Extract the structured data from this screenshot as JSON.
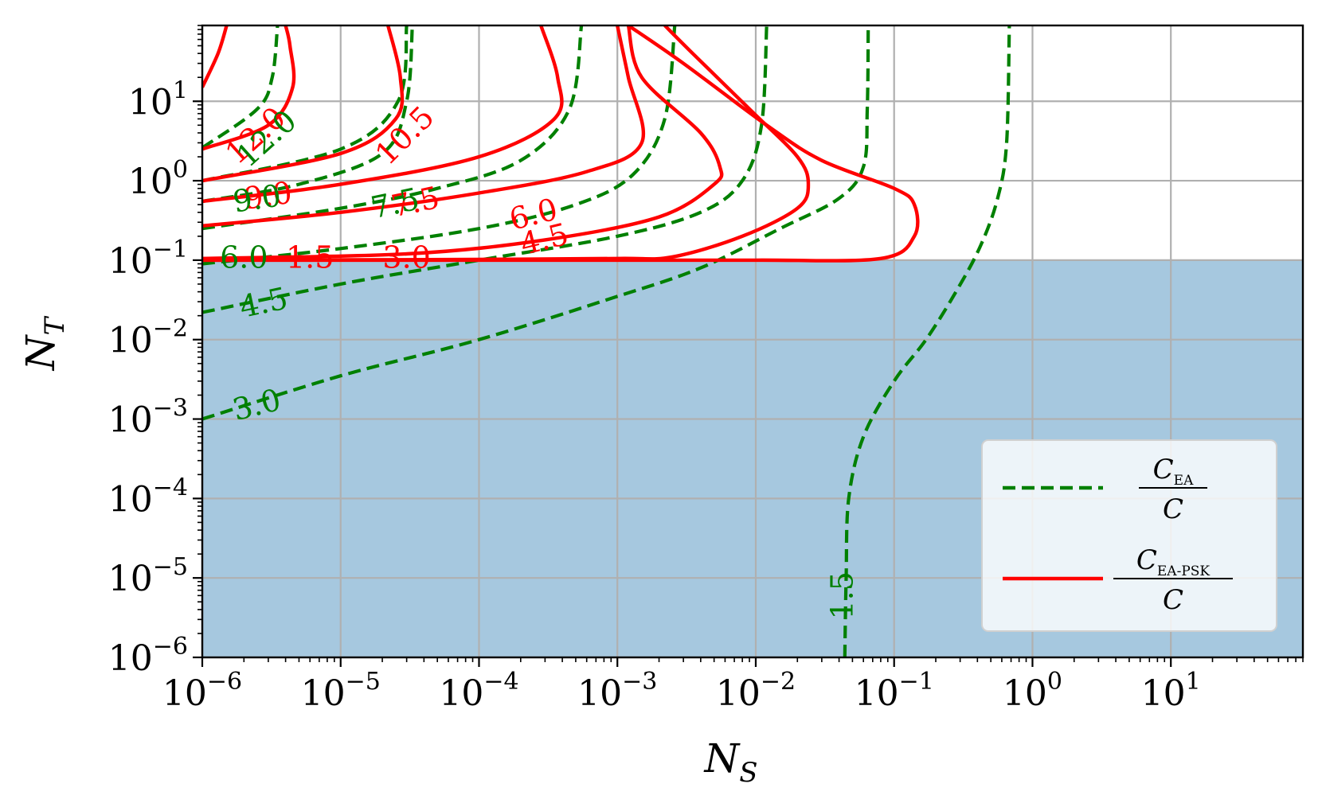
{
  "chart_data": {
    "type": "line",
    "xlabel": "N",
    "xlabel_sub": "S",
    "ylabel": "N",
    "ylabel_sub": "T",
    "xscale": "log",
    "yscale": "log",
    "xlim": [
      1e-06,
      90
    ],
    "ylim": [
      1e-06,
      90
    ],
    "grid": true,
    "x_tick_exponents": [
      "−6",
      "−5",
      "−4",
      "−3",
      "−2",
      "−1",
      "0",
      "1"
    ],
    "y_tick_exponents": [
      "−6",
      "−5",
      "−4",
      "−3",
      "−2",
      "−1",
      "0",
      "1"
    ],
    "tick_base": "10",
    "shaded_region": {
      "y_max": 0.1,
      "color": "#a6c8df"
    },
    "legend": {
      "position": "lower-right",
      "entries": [
        {
          "symbol": "C",
          "subscript": "EA",
          "denominator": "C",
          "style": "dashed",
          "color": "#008000"
        },
        {
          "symbol": "C",
          "subscript": "EA-PSK",
          "denominator": "C",
          "style": "solid",
          "color": "#ff0000"
        }
      ]
    },
    "series": [
      {
        "group": "CEA/C",
        "level": "1.5",
        "color": "#008000",
        "style": "dashed",
        "points": [
          [
            0.044,
            1e-06
          ],
          [
            0.045,
            1e-05
          ],
          [
            0.047,
            0.0001
          ],
          [
            0.06,
            0.0006
          ],
          [
            0.1,
            0.003
          ],
          [
            0.17,
            0.01
          ],
          [
            0.28,
            0.04
          ],
          [
            0.42,
            0.15
          ],
          [
            0.56,
            0.6
          ],
          [
            0.65,
            3
          ],
          [
            0.68,
            90
          ]
        ]
      },
      {
        "group": "CEA/C",
        "level": "3.0",
        "color": "#008000",
        "style": "dashed",
        "points": [
          [
            1e-06,
            0.001
          ],
          [
            1e-05,
            0.0035
          ],
          [
            0.0001,
            0.01
          ],
          [
            0.001,
            0.035
          ],
          [
            0.004,
            0.08
          ],
          [
            0.015,
            0.25
          ],
          [
            0.04,
            0.6
          ],
          [
            0.06,
            1.5
          ],
          [
            0.064,
            8
          ],
          [
            0.065,
            90
          ]
        ]
      },
      {
        "group": "CEA/C",
        "level": "4.5",
        "color": "#008000",
        "style": "dashed",
        "points": [
          [
            1e-06,
            0.022
          ],
          [
            1e-05,
            0.05
          ],
          [
            0.0001,
            0.1
          ],
          [
            0.001,
            0.2
          ],
          [
            0.004,
            0.4
          ],
          [
            0.008,
            1
          ],
          [
            0.011,
            5
          ],
          [
            0.012,
            90
          ]
        ]
      },
      {
        "group": "CEA/C",
        "level": "6.0",
        "color": "#008000",
        "style": "dashed",
        "points": [
          [
            1e-06,
            0.09
          ],
          [
            1e-05,
            0.14
          ],
          [
            0.0001,
            0.25
          ],
          [
            0.0005,
            0.5
          ],
          [
            0.0013,
            1.2
          ],
          [
            0.0022,
            6
          ],
          [
            0.0026,
            90
          ]
        ]
      },
      {
        "group": "CEA/C",
        "level": "7.5",
        "color": "#008000",
        "style": "dashed",
        "points": [
          [
            1e-06,
            0.25
          ],
          [
            1e-05,
            0.45
          ],
          [
            5e-05,
            0.8
          ],
          [
            0.0002,
            1.8
          ],
          [
            0.00045,
            8
          ],
          [
            0.00055,
            90
          ]
        ]
      },
      {
        "group": "CEA/C",
        "level": "9.0",
        "color": "#008000",
        "style": "dashed",
        "points": [
          [
            1e-06,
            0.55
          ],
          [
            5e-06,
            0.9
          ],
          [
            2e-05,
            2.2
          ],
          [
            3e-05,
            10
          ],
          [
            3.3e-05,
            90
          ]
        ]
      },
      {
        "group": "CEA/C",
        "level": "10.5",
        "color": "#008000",
        "style": "dashed",
        "points": [
          [
            1e-06,
            1.0
          ],
          [
            1e-05,
            2.5
          ],
          [
            2.6e-05,
            10
          ],
          [
            3e-05,
            90
          ]
        ]
      },
      {
        "group": "CEA/C",
        "level": "12.0",
        "color": "#008000",
        "style": "dashed",
        "points": [
          [
            1e-06,
            2.6
          ],
          [
            2.5e-06,
            8
          ],
          [
            3.2e-06,
            20
          ],
          [
            3.5e-06,
            90
          ]
        ]
      },
      {
        "group": "CEA-PSK/C",
        "level": "1.5",
        "color": "#ff0000",
        "style": "solid",
        "points": [
          [
            1e-06,
            0.1
          ],
          [
            1e-05,
            0.1
          ],
          [
            0.0001,
            0.1
          ],
          [
            0.001,
            0.1
          ],
          [
            0.01,
            0.1
          ],
          [
            0.08,
            0.105
          ],
          [
            0.14,
            0.2
          ],
          [
            0.14,
            0.5
          ],
          [
            0.1,
            0.8
          ],
          [
            0.03,
            1.8
          ],
          [
            0.012,
            5
          ],
          [
            0.003,
            30
          ],
          [
            0.0012,
            90
          ]
        ]
      },
      {
        "group": "CEA-PSK/C",
        "level": "3.0",
        "color": "#ff0000",
        "style": "solid",
        "points": [
          [
            1e-06,
            0.1
          ],
          [
            0.0001,
            0.102
          ],
          [
            0.001,
            0.105
          ],
          [
            0.0025,
            0.11
          ],
          [
            0.008,
            0.2
          ],
          [
            0.02,
            0.45
          ],
          [
            0.024,
            0.9
          ],
          [
            0.02,
            2
          ],
          [
            0.009,
            8
          ],
          [
            0.0035,
            40
          ],
          [
            0.0022,
            90
          ]
        ]
      },
      {
        "group": "CEA-PSK/C",
        "level": "4.5",
        "color": "#ff0000",
        "style": "solid",
        "points": [
          [
            1e-06,
            0.105
          ],
          [
            3e-05,
            0.12
          ],
          [
            0.0003,
            0.18
          ],
          [
            0.002,
            0.35
          ],
          [
            0.005,
            0.9
          ],
          [
            0.0055,
            1.5
          ],
          [
            0.004,
            4
          ],
          [
            0.0015,
            20
          ],
          [
            0.0012,
            90
          ]
        ]
      },
      {
        "group": "CEA-PSK/C",
        "level": "6.0",
        "color": "#ff0000",
        "style": "solid",
        "points": [
          [
            1e-06,
            0.27
          ],
          [
            1e-05,
            0.4
          ],
          [
            0.0001,
            0.7
          ],
          [
            0.0006,
            1.3
          ],
          [
            0.0015,
            3
          ],
          [
            0.0012,
            20
          ],
          [
            0.001,
            90
          ]
        ]
      },
      {
        "group": "CEA-PSK/C",
        "level": "7.5",
        "color": "#ff0000",
        "style": "solid",
        "points": [
          [
            1e-06,
            0.55
          ],
          [
            1e-05,
            0.9
          ],
          [
            0.0001,
            2
          ],
          [
            0.00035,
            6
          ],
          [
            0.00037,
            20
          ],
          [
            0.00028,
            90
          ]
        ]
      },
      {
        "group": "CEA-PSK/C",
        "level": "9.0",
        "color": "#ff0000",
        "style": "solid",
        "points": [
          [
            1e-06,
            1.0
          ],
          [
            1e-05,
            2.2
          ],
          [
            2.5e-05,
            6
          ],
          [
            2.7e-05,
            20
          ],
          [
            2.2e-05,
            90
          ]
        ]
      },
      {
        "group": "CEA-PSK/C",
        "level": "10.5",
        "color": "#ff0000",
        "style": "solid",
        "points": [
          [
            1e-06,
            2.5
          ],
          [
            3e-06,
            5
          ],
          [
            4.5e-06,
            15
          ],
          [
            4.3e-06,
            50
          ],
          [
            4e-06,
            90
          ]
        ]
      },
      {
        "group": "CEA-PSK/C",
        "level": "12.0",
        "color": "#ff0000",
        "style": "solid",
        "points": [
          [
            1e-06,
            15
          ],
          [
            1.3e-06,
            40
          ],
          [
            1.5e-06,
            90
          ]
        ]
      }
    ],
    "contour_labels": [
      {
        "text": "12.0",
        "color": "#ff0000",
        "x": 2.5e-06,
        "y": 3.5,
        "angle": -42
      },
      {
        "text": "10.5",
        "color": "#ff0000",
        "x": 3e-05,
        "y": 3.5,
        "angle": -45
      },
      {
        "text": "9.0",
        "color": "#ff0000",
        "x": 3e-06,
        "y": 0.6,
        "angle": -8
      },
      {
        "text": "7.5",
        "color": "#ff0000",
        "x": 3.5e-05,
        "y": 0.5,
        "angle": -12
      },
      {
        "text": "6.0",
        "color": "#ff0000",
        "x": 0.00025,
        "y": 0.35,
        "angle": -14
      },
      {
        "text": "4.5",
        "color": "#ff0000",
        "x": 0.0003,
        "y": 0.17,
        "angle": -14
      },
      {
        "text": "3.0",
        "color": "#ff0000",
        "x": 3e-05,
        "y": 0.1,
        "angle": 0
      },
      {
        "text": "1.5",
        "color": "#ff0000",
        "x": 6e-06,
        "y": 0.1,
        "angle": 0
      },
      {
        "text": "12.0",
        "color": "#008000",
        "x": 3e-06,
        "y": 3.2,
        "angle": -42
      },
      {
        "text": "9.0",
        "color": "#008000",
        "x": 2.5e-06,
        "y": 0.55,
        "angle": -8
      },
      {
        "text": "7.5",
        "color": "#008000",
        "x": 2.5e-05,
        "y": 0.48,
        "angle": -12
      },
      {
        "text": "6.0",
        "color": "#008000",
        "x": 2e-06,
        "y": 0.1,
        "angle": 0
      },
      {
        "text": "4.5",
        "color": "#008000",
        "x": 2.8e-06,
        "y": 0.027,
        "angle": -12
      },
      {
        "text": "3.0",
        "color": "#008000",
        "x": 2.5e-06,
        "y": 0.0014,
        "angle": -14
      },
      {
        "text": "1.5",
        "color": "#008000",
        "x": 0.044,
        "y": 6e-06,
        "angle": -90
      }
    ]
  }
}
